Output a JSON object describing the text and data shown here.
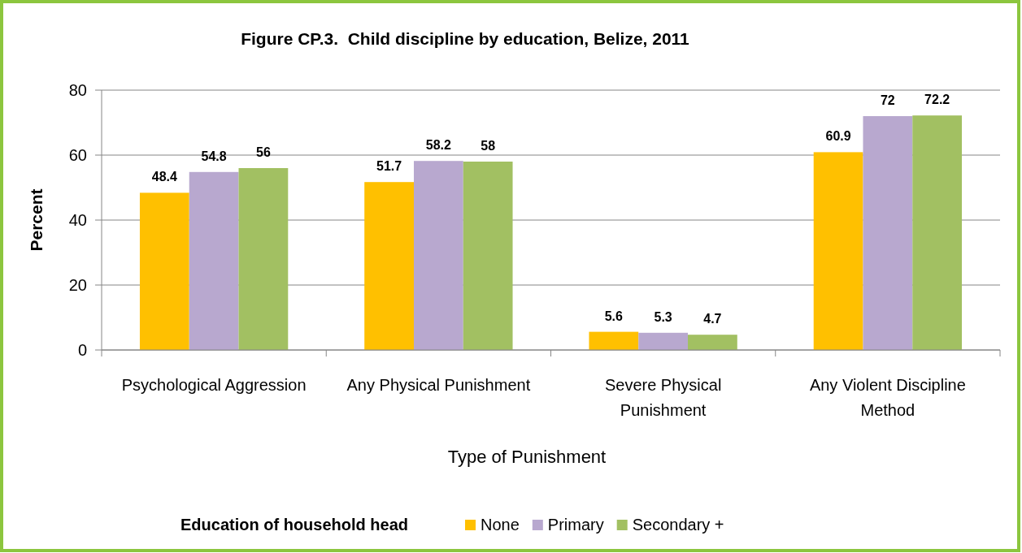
{
  "chart_data": {
    "type": "bar",
    "title": "Figure CP.3.  Child discipline by education, Belize, 2011",
    "xlabel": "Type of Punishment",
    "ylabel": "Percent",
    "legend_title": "Education of household head",
    "categories": [
      "Psychological Aggression",
      "Any Physical Punishment",
      "Severe Physical Punishment",
      "Any Violent Discipline Method"
    ],
    "series": [
      {
        "name": "None",
        "color": "#ffc000",
        "values": [
          48.4,
          51.7,
          5.6,
          60.9
        ]
      },
      {
        "name": "Primary",
        "color": "#b8a8cf",
        "values": [
          54.8,
          58.2,
          5.3,
          72
        ]
      },
      {
        "name": "Secondary +",
        "color": "#a2c062",
        "values": [
          56,
          58,
          4.7,
          72.2
        ]
      }
    ],
    "ylim": [
      0,
      80
    ],
    "yticks": [
      0,
      20,
      40,
      60,
      80
    ],
    "grid": "y",
    "data_labels": true,
    "legend": "bottom"
  }
}
